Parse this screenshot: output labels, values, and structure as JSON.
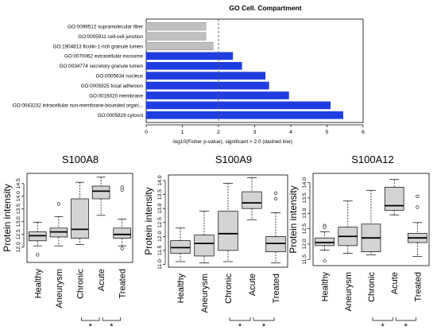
{
  "go_chart": {
    "title": "GO Cell. Compartment",
    "xlabel": "-log10(Fisher p-value), significant > 2.0 (dashed line)",
    "colors": {
      "significant": "#1f3de0",
      "not_significant": "#c0c0c0",
      "threshold_line": "#555555"
    }
  },
  "boxplots": {
    "ylabel": "Protein intensity",
    "box_fill": "#d3d3d3",
    "significance_marker": "*"
  },
  "chart_data": [
    {
      "type": "bar",
      "orientation": "horizontal",
      "title": "GO Cell. Compartment",
      "xlabel": "-log10(Fisher p-value), significant > 2.0 (dashed line)",
      "xlim": [
        0,
        6
      ],
      "xticks": [
        0,
        1,
        2,
        3,
        4,
        5,
        6
      ],
      "threshold": 2.0,
      "categories": [
        "GO:0099512 supramolecular fiber",
        "GO:0005911 cell-cell junction",
        "GO:1904813 ficolin-1-rich granule lumen",
        "GO:0070062 extracellular exosome",
        "GO:0034774 secretory granule lumen",
        "GO:0005634 nucleus",
        "GO:0005925 focal adhesion",
        "GO:0016020 membrane",
        "GO:0043232 intracellular non-membrane-bounded organ...",
        "GO:0005829 cytosol"
      ],
      "values": [
        1.65,
        1.65,
        1.85,
        2.4,
        2.65,
        3.3,
        3.4,
        3.95,
        5.1,
        5.45
      ]
    },
    {
      "type": "box",
      "title": "S100A8",
      "ylabel": "Protein intensity",
      "ylim": [
        11.4,
        14.9
      ],
      "yticks": [
        12.0,
        12.5,
        13.0,
        13.5,
        14.0,
        14.5
      ],
      "categories": [
        "Healthy",
        "Aneurysm",
        "Chronic",
        "Acute",
        "Treated"
      ],
      "boxes": [
        {
          "low": 12.05,
          "q1": 12.25,
          "median": 12.45,
          "q3": 12.6,
          "high": 12.98,
          "outliers": [
            11.7
          ]
        },
        {
          "low": 12.05,
          "q1": 12.4,
          "median": 12.6,
          "q3": 12.75,
          "high": 13.2,
          "outliers": [
            13.7
          ]
        },
        {
          "low": 12.1,
          "q1": 12.35,
          "median": 12.7,
          "q3": 13.9,
          "high": 14.55,
          "outliers": []
        },
        {
          "low": 13.25,
          "q1": 13.9,
          "median": 14.2,
          "q3": 14.4,
          "high": 14.75,
          "outliers": []
        },
        {
          "low": 12.05,
          "q1": 12.35,
          "median": 12.5,
          "q3": 12.75,
          "high": 13.1,
          "outliers": [
            14.35,
            14.25,
            11.95
          ]
        }
      ],
      "significance": [
        {
          "pair": [
            "Chronic",
            "Acute"
          ],
          "label": "*"
        },
        {
          "pair": [
            "Acute",
            "Treated"
          ],
          "label": "*"
        }
      ]
    },
    {
      "type": "box",
      "title": "S100A9",
      "ylabel": "Protein intensity",
      "ylim": [
        10.9,
        14.2
      ],
      "yticks": [
        11.0,
        11.5,
        12.0,
        12.5,
        13.0,
        13.5,
        14.0
      ],
      "categories": [
        "Healthy",
        "Aneurysm",
        "Chronic",
        "Acute",
        "Treated"
      ],
      "boxes": [
        {
          "low": 11.1,
          "q1": 11.4,
          "median": 11.6,
          "q3": 11.85,
          "high": 12.3,
          "outliers": []
        },
        {
          "low": 11.05,
          "q1": 11.3,
          "median": 11.75,
          "q3": 12.05,
          "high": 12.9,
          "outliers": []
        },
        {
          "low": 11.1,
          "q1": 11.5,
          "median": 12.1,
          "q3": 12.9,
          "high": 13.9,
          "outliers": []
        },
        {
          "low": 12.6,
          "q1": 13.0,
          "median": 13.2,
          "q3": 13.6,
          "high": 14.1,
          "outliers": []
        },
        {
          "low": 11.05,
          "q1": 11.45,
          "median": 11.75,
          "q3": 12.0,
          "high": 12.85,
          "outliers": [
            13.55,
            13.35
          ]
        }
      ],
      "significance": [
        {
          "pair": [
            "Chronic",
            "Acute"
          ],
          "label": "*"
        },
        {
          "pair": [
            "Acute",
            "Treated"
          ],
          "label": "*"
        }
      ]
    },
    {
      "type": "box",
      "title": "S100A12",
      "ylabel": "Protein intensity",
      "ylim": [
        11.3,
        14.3
      ],
      "yticks": [
        11.5,
        12.0,
        12.5,
        13.0,
        13.5,
        14.0
      ],
      "categories": [
        "Healthy",
        "Aneurysm",
        "Chronic",
        "Acute",
        "Treated"
      ],
      "boxes": [
        {
          "low": 11.8,
          "q1": 11.95,
          "median": 12.05,
          "q3": 12.2,
          "high": 12.4,
          "outliers": [
            12.6,
            12.55,
            11.45
          ]
        },
        {
          "low": 11.7,
          "q1": 11.95,
          "median": 12.25,
          "q3": 12.55,
          "high": 13.4,
          "outliers": []
        },
        {
          "low": 11.65,
          "q1": 11.75,
          "median": 12.2,
          "q3": 12.65,
          "high": 13.75,
          "outliers": []
        },
        {
          "low": 12.95,
          "q1": 13.1,
          "median": 13.25,
          "q3": 13.85,
          "high": 14.1,
          "outliers": []
        },
        {
          "low": 11.6,
          "q1": 12.05,
          "median": 12.2,
          "q3": 12.35,
          "high": 12.7,
          "outliers": [
            13.55,
            13.2
          ]
        }
      ],
      "significance": [
        {
          "pair": [
            "Chronic",
            "Acute"
          ],
          "label": "*"
        },
        {
          "pair": [
            "Acute",
            "Treated"
          ],
          "label": "*"
        }
      ]
    }
  ]
}
